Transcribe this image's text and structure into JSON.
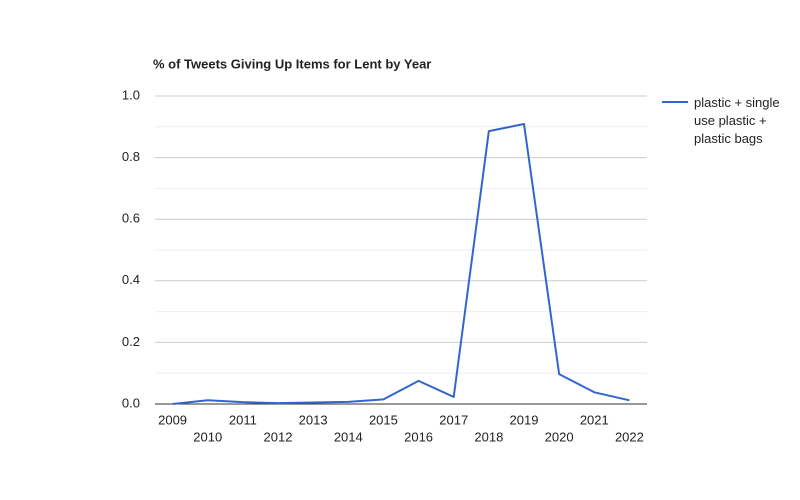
{
  "chart_data": {
    "type": "line",
    "title": "% of Tweets Giving Up Items for Lent by Year",
    "x": [
      2009,
      2010,
      2011,
      2012,
      2013,
      2014,
      2015,
      2016,
      2017,
      2018,
      2019,
      2020,
      2021,
      2022
    ],
    "xlim": [
      2008.5,
      2022.5
    ],
    "series": [
      {
        "name": "plastic + single use plastic + plastic bags",
        "color": "#3366cc",
        "values": [
          0.0,
          0.012,
          0.006,
          0.003,
          0.005,
          0.007,
          0.015,
          0.075,
          0.023,
          0.886,
          0.909,
          0.097,
          0.038,
          0.012
        ]
      }
    ],
    "ylim": [
      0,
      1
    ],
    "yticks": [
      {
        "value": 0,
        "label": "0.0"
      },
      {
        "value": 0.2,
        "label": "0.2"
      },
      {
        "value": 0.4,
        "label": "0.4"
      },
      {
        "value": 0.6,
        "label": "0.6"
      },
      {
        "value": 0.8,
        "label": "0.8"
      },
      {
        "value": 1,
        "label": "1.0"
      }
    ],
    "yminorticks": [
      0.1,
      0.3,
      0.5,
      0.7,
      0.9
    ],
    "grid": true,
    "legend": "right"
  }
}
